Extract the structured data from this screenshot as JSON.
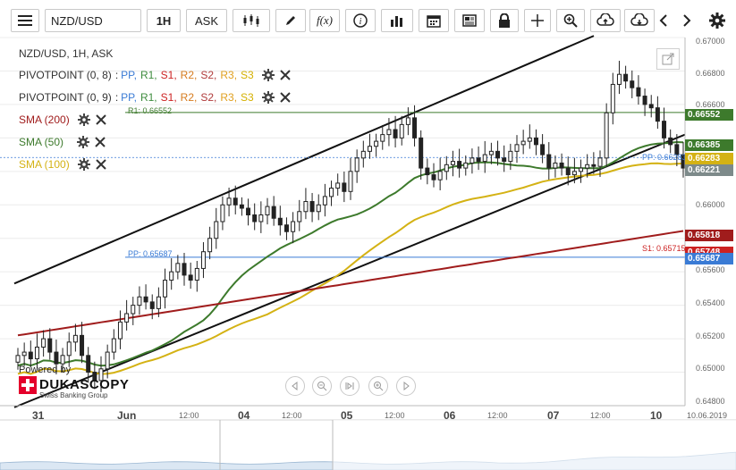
{
  "toolbar": {
    "symbol": "NZD/USD",
    "timeframe": "1H",
    "side": "ASK",
    "fx_label": "f(x)",
    "icons": [
      "menu-icon",
      "candlestick-icon",
      "pencil-icon",
      "function-icon",
      "info-icon",
      "volume-bars-icon",
      "calendar-icon",
      "news-icon",
      "lock-icon",
      "crosshair-icon",
      "zoom-icon",
      "cloud-upload-icon",
      "cloud-download-icon",
      "chevron-left-icon",
      "chevron-right-icon",
      "gear-icon"
    ]
  },
  "legend": {
    "title": "NZD/USD, 1H, ASK",
    "pivots": [
      {
        "name": "PIVOTPOINT (0, 8)",
        "items": [
          "PP,",
          "R1,",
          "S1,",
          "R2,",
          "S2,",
          "R3,",
          "S3"
        ]
      },
      {
        "name": "PIVOTPOINT (0, 9)",
        "items": [
          "PP,",
          "R1,",
          "S1,",
          "R2,",
          "S2,",
          "R3,",
          "S3"
        ]
      }
    ],
    "pivot_colors": [
      "#3a7bd5",
      "#3e8c3e",
      "#cc2222",
      "#d67b1e",
      "#b03b3b",
      "#e0a020",
      "#d4b000"
    ],
    "smas": [
      {
        "name": "SMA (200)",
        "color": "#a01c1c"
      },
      {
        "name": "SMA (50)",
        "color": "#3d7a2c"
      },
      {
        "name": "SMA (100)",
        "color": "#d4b214"
      }
    ]
  },
  "annotations": {
    "r1_label": "R1: 0.66552",
    "pp_label_left": "PP: 0.65687",
    "pp_label_right": "PP: 0.66283",
    "s1_label": "S1: 0.65715"
  },
  "price_axis": {
    "ticks": [
      "0.67000",
      "0.66800",
      "0.66600",
      "0.66000",
      "0.65600",
      "0.65400",
      "0.65200",
      "0.65000",
      "0.64800"
    ],
    "badges": [
      {
        "value": "0.66552",
        "color": "#3d7a2c"
      },
      {
        "value": "0.66385",
        "color": "#3d7a2c"
      },
      {
        "value": "0.66283",
        "color": "#d4b214"
      },
      {
        "value": "0.66221",
        "color": "#7d8a8a"
      },
      {
        "value": "0.65818",
        "color": "#a01c1c"
      },
      {
        "value": "0.65748",
        "color": "#cc2222"
      },
      {
        "value": "0.65687",
        "color": "#3a7bd5"
      }
    ]
  },
  "time_axis": {
    "labels": [
      "31",
      "Jun",
      "12:00",
      "04",
      "12:00",
      "05",
      "12:00",
      "06",
      "12:00",
      "07",
      "12:00",
      "10",
      "10.06.2019"
    ]
  },
  "watermark": {
    "powered": "Powered by",
    "brand": "DUKASCOPY",
    "sub": "Swiss Banking Group"
  },
  "nav_controls": [
    "scroll-left-icon",
    "zoom-out-icon",
    "reset-icon",
    "zoom-in-icon",
    "scroll-right-icon"
  ],
  "chart_data": {
    "type": "candlestick",
    "symbol": "NZD/USD",
    "interval": "1H",
    "ylim": [
      0.648,
      0.67
    ],
    "levels": {
      "r1": 0.66552,
      "pp_prev": 0.65687,
      "pp_last": 0.66283,
      "s1": 0.65715
    },
    "closes": [
      0.651,
      0.6512,
      0.6508,
      0.6515,
      0.652,
      0.6512,
      0.6505,
      0.651,
      0.6518,
      0.6522,
      0.651,
      0.65,
      0.6495,
      0.6502,
      0.6512,
      0.652,
      0.653,
      0.6535,
      0.654,
      0.6545,
      0.6542,
      0.6538,
      0.6545,
      0.6555,
      0.656,
      0.6565,
      0.6558,
      0.6555,
      0.6562,
      0.6572,
      0.658,
      0.659,
      0.66,
      0.6604,
      0.66,
      0.6598,
      0.6594,
      0.659,
      0.6594,
      0.6599,
      0.6592,
      0.6588,
      0.6584,
      0.659,
      0.6596,
      0.6602,
      0.6596,
      0.66,
      0.6605,
      0.661,
      0.6613,
      0.6608,
      0.662,
      0.6628,
      0.6632,
      0.6635,
      0.6638,
      0.6642,
      0.6645,
      0.664,
      0.6648,
      0.6652,
      0.664,
      0.6622,
      0.6618,
      0.6615,
      0.662,
      0.6624,
      0.6626,
      0.6622,
      0.6625,
      0.6628,
      0.6626,
      0.663,
      0.6632,
      0.6628,
      0.6626,
      0.6632,
      0.6636,
      0.6638,
      0.664,
      0.6636,
      0.663,
      0.6622,
      0.6625,
      0.6622,
      0.6618,
      0.662,
      0.6622,
      0.6624,
      0.6623,
      0.6628,
      0.6655,
      0.6672,
      0.6678,
      0.6674,
      0.667,
      0.6665,
      0.666,
      0.6658,
      0.665,
      0.664,
      0.6636,
      0.663,
      0.6622
    ]
  }
}
